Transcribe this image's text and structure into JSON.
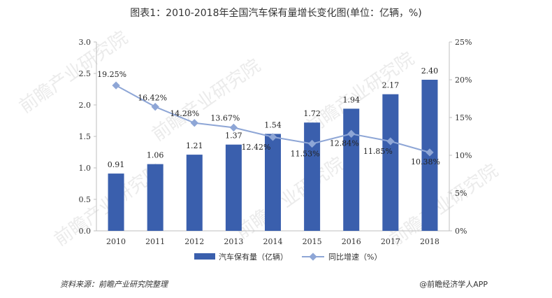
{
  "header": {
    "title": "图表1：2010-2018年全国汽车保有量增长变化图(单位：亿辆，%)"
  },
  "footer": {
    "source": "资料来源：前瞻产业研究院整理",
    "brand": "@前瞻经济学人APP"
  },
  "watermark": {
    "text": "前瞻产业研究院"
  },
  "chart_data": {
    "type": "bar",
    "categories": [
      "2010",
      "2011",
      "2012",
      "2013",
      "2014",
      "2015",
      "2016",
      "2017",
      "2018"
    ],
    "series": [
      {
        "name": "汽车保有量（亿辆）",
        "type": "bar",
        "axis": "left",
        "values": [
          0.91,
          1.06,
          1.21,
          1.37,
          1.54,
          1.72,
          1.94,
          2.17,
          2.4
        ],
        "labels": [
          "0.91",
          "1.06",
          "1.21",
          "1.37",
          "1.54",
          "1.72",
          "1.94",
          "2.17",
          "2.40"
        ],
        "color": "#3a5fad"
      },
      {
        "name": "同比增速（%）",
        "type": "line",
        "axis": "right",
        "values": [
          19.25,
          16.42,
          14.28,
          13.67,
          12.42,
          11.53,
          12.84,
          11.85,
          10.38
        ],
        "labels": [
          "19.25%",
          "16.42%",
          "14.28%",
          "13.67%",
          "12.42%",
          "11.53%",
          "12.84%",
          "11.85%",
          "10.38%"
        ],
        "color": "#8ea6d6"
      }
    ],
    "y_left": {
      "ylim": [
        0,
        3.0
      ],
      "ticks": [
        "0.0",
        "0.5",
        "1.0",
        "1.5",
        "2.0",
        "2.5",
        "3.0"
      ]
    },
    "y_right": {
      "ylim": [
        0,
        25
      ],
      "ticks": [
        "0%",
        "5%",
        "10%",
        "15%",
        "20%",
        "25%"
      ]
    },
    "grid": false,
    "legend_position": "bottom"
  }
}
